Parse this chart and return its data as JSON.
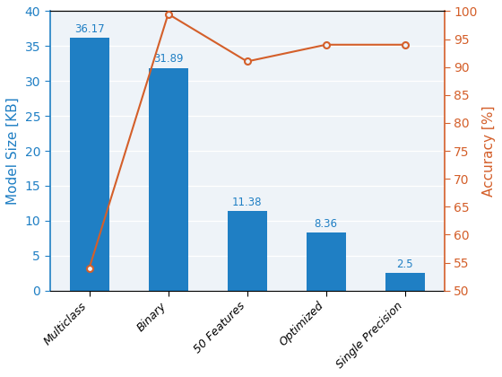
{
  "categories": [
    "Multiclass",
    "Binary",
    "50 Features",
    "Optimized",
    "Single Precision"
  ],
  "bar_values": [
    36.17,
    31.89,
    11.38,
    8.36,
    2.5
  ],
  "accuracy_values": [
    54,
    99.5,
    91,
    94,
    94
  ],
  "bar_color": "#1f7fc4",
  "line_color": "#d45f2a",
  "ylabel_left": "Model Size [KB]",
  "ylabel_right": "Accuracy [%]",
  "ylim_left": [
    0,
    40
  ],
  "ylim_right": [
    50,
    100
  ],
  "yticks_left": [
    0,
    5,
    10,
    15,
    20,
    25,
    30,
    35,
    40
  ],
  "yticks_right": [
    50,
    55,
    60,
    65,
    70,
    75,
    80,
    85,
    90,
    95,
    100
  ],
  "bar_label_fontsize": 8.5,
  "axis_label_fontsize": 11,
  "tick_label_fontsize": 9,
  "plot_bg_color": "#eef3f8",
  "figure_bg_color": "#ffffff",
  "grid_color": "#ffffff",
  "bar_width": 0.5
}
